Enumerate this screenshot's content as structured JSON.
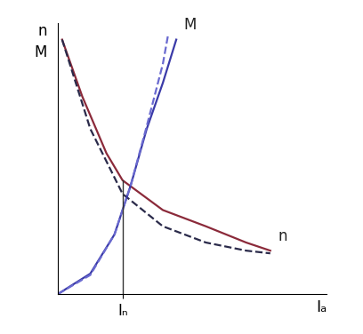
{
  "chart_data": {
    "type": "line",
    "x_label": "Iₐ",
    "y_label": "n\nM",
    "xlim": [
      0,
      10
    ],
    "ylim": [
      0,
      10
    ],
    "xticks": [
      {
        "value": 2.4,
        "label": "Iₙ"
      }
    ],
    "yticks": [],
    "tick_labels": "x",
    "grid": false,
    "rated_line": {
      "x": 2.4,
      "y": 4.2
    },
    "series": [
      {
        "name": "n",
        "color": "#8b2a3a",
        "line_style": "solid",
        "x": [
          0.15,
          0.9,
          1.8,
          2.4,
          3.9,
          5.5,
          7.0,
          7.9
        ],
        "values": [
          9.4,
          7.3,
          5.2,
          4.2,
          3.1,
          2.5,
          1.9,
          1.6
        ]
      },
      {
        "color": "#2a2a4a",
        "line_style": "dashed",
        "x": [
          0.15,
          1.2,
          2.4,
          3.9,
          5.5,
          7.0,
          7.9
        ],
        "values": [
          9.4,
          6.1,
          3.7,
          2.5,
          1.9,
          1.6,
          1.5
        ]
      },
      {
        "name": "M",
        "color": "#3a3aa8",
        "line_style": "solid",
        "x": [
          0.0,
          1.2,
          2.1,
          2.7,
          3.3,
          3.9,
          4.4
        ],
        "values": [
          0.0,
          0.75,
          2.2,
          4.0,
          6.1,
          7.8,
          9.4
        ]
      },
      {
        "color": "#6a6ad0",
        "line_style": "dashed",
        "x": [
          0.0,
          1.2,
          2.1,
          2.7,
          3.3,
          3.9,
          4.1
        ],
        "values": [
          0.0,
          0.7,
          2.2,
          4.0,
          6.2,
          8.5,
          9.6
        ]
      }
    ]
  }
}
